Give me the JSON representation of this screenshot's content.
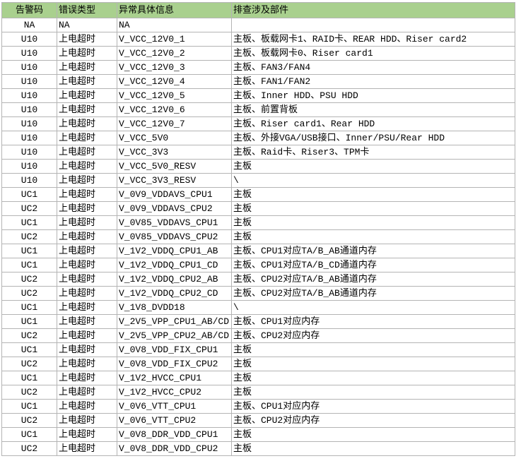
{
  "table": {
    "header": [
      "告警码",
      "错误类型",
      "异常具体信息",
      "排查涉及部件"
    ],
    "rows": [
      [
        "NA",
        "NA",
        "NA",
        ""
      ],
      [
        "U10",
        "上电超时",
        "V_VCC_12V0_1",
        "主板、板载网卡1、RAID卡、REAR HDD、Riser card2"
      ],
      [
        "U10",
        "上电超时",
        "V_VCC_12V0_2",
        "主板、板载网卡0、Riser card1"
      ],
      [
        "U10",
        "上电超时",
        "V_VCC_12V0_3",
        "主板、FAN3/FAN4"
      ],
      [
        "U10",
        "上电超时",
        "V_VCC_12V0_4",
        "主板、FAN1/FAN2"
      ],
      [
        "U10",
        "上电超时",
        "V_VCC_12V0_5",
        "主板、Inner HDD、PSU HDD"
      ],
      [
        "U10",
        "上电超时",
        "V_VCC_12V0_6",
        "主板、前置背板"
      ],
      [
        "U10",
        "上电超时",
        "V_VCC_12V0_7",
        "主板、Riser card1、Rear HDD"
      ],
      [
        "U10",
        "上电超时",
        "V_VCC_5V0",
        "主板、外接VGA/USB接口、Inner/PSU/Rear HDD"
      ],
      [
        "U10",
        "上电超时",
        "V_VCC_3V3",
        "主板、Raid卡、Riser3、TPM卡"
      ],
      [
        "U10",
        "上电超时",
        "V_VCC_5V0_RESV",
        "主板"
      ],
      [
        "U10",
        "上电超时",
        "V_VCC_3V3_RESV",
        "\\"
      ],
      [
        "UC1",
        "上电超时",
        "V_0V9_VDDAVS_CPU1",
        "主板"
      ],
      [
        "UC2",
        "上电超时",
        "V_0V9_VDDAVS_CPU2",
        "主板"
      ],
      [
        "UC1",
        "上电超时",
        "V_0V85_VDDAVS_CPU1",
        "主板"
      ],
      [
        "UC2",
        "上电超时",
        "V_0V85_VDDAVS_CPU2",
        "主板"
      ],
      [
        "UC1",
        "上电超时",
        "V_1V2_VDDQ_CPU1_AB",
        "主板、CPU1对应TA/B_AB通道内存"
      ],
      [
        "UC1",
        "上电超时",
        "V_1V2_VDDQ_CPU1_CD",
        "主板、CPU1对应TA/B_CD通道内存"
      ],
      [
        "UC2",
        "上电超时",
        "V_1V2_VDDQ_CPU2_AB",
        "主板、CPU2对应TA/B_AB通道内存"
      ],
      [
        "UC2",
        "上电超时",
        "V_1V2_VDDQ_CPU2_CD",
        "主板、CPU2对应TA/B_AB通道内存"
      ],
      [
        "UC1",
        "上电超时",
        "V_1V8_DVDD18",
        "\\"
      ],
      [
        "UC1",
        "上电超时",
        "V_2V5_VPP_CPU1_AB/CD",
        "主板、CPU1对应内存"
      ],
      [
        "UC2",
        "上电超时",
        "V_2V5_VPP_CPU2_AB/CD",
        "主板、CPU2对应内存"
      ],
      [
        "UC1",
        "上电超时",
        "V_0V8_VDD_FIX_CPU1",
        "主板"
      ],
      [
        "UC2",
        "上电超时",
        "V_0V8_VDD_FIX_CPU2",
        "主板"
      ],
      [
        "UC1",
        "上电超时",
        "V_1V2_HVCC_CPU1",
        "主板"
      ],
      [
        "UC2",
        "上电超时",
        "V_1V2_HVCC_CPU2",
        "主板"
      ],
      [
        "UC1",
        "上电超时",
        "V_0V6_VTT_CPU1",
        "主板、CPU1对应内存"
      ],
      [
        "UC2",
        "上电超时",
        "V_0V6_VTT_CPU2",
        "主板、CPU2对应内存"
      ],
      [
        "UC1",
        "上电超时",
        "V_0V8_DDR_VDD_CPU1",
        "主板"
      ],
      [
        "UC2",
        "上电超时",
        "V_0V8_DDR_VDD_CPU2",
        "主板"
      ]
    ]
  }
}
